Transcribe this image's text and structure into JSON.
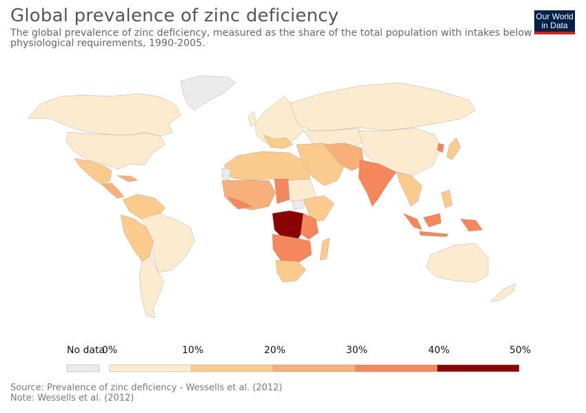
{
  "header": {
    "title": "Global prevalence of zinc deficiency",
    "subtitle": "The global prevalence of zinc deficiency, measured as the share of the total population with intakes below physiological requirements, 1990-2005."
  },
  "logo": {
    "line1": "Our World",
    "line2": "in Data"
  },
  "legend": {
    "no_data_label": "No data",
    "ticks": [
      "0%",
      "10%",
      "20%",
      "30%",
      "40%",
      "50%"
    ],
    "bins": [
      {
        "from": 0,
        "to": 10,
        "color": "#fdebd0"
      },
      {
        "from": 10,
        "to": 20,
        "color": "#fbcb8e"
      },
      {
        "from": 20,
        "to": 30,
        "color": "#f7b07a"
      },
      {
        "from": 30,
        "to": 40,
        "color": "#f4875b"
      },
      {
        "from": 40,
        "to": 50,
        "color": "#8b0000"
      }
    ],
    "no_data_color": "#ebebeb"
  },
  "footer": {
    "source": "Source: Prevalence of zinc deficiency - Wessells et al. (2012)",
    "note": "Note: Wessells et al. (2012)"
  }
}
